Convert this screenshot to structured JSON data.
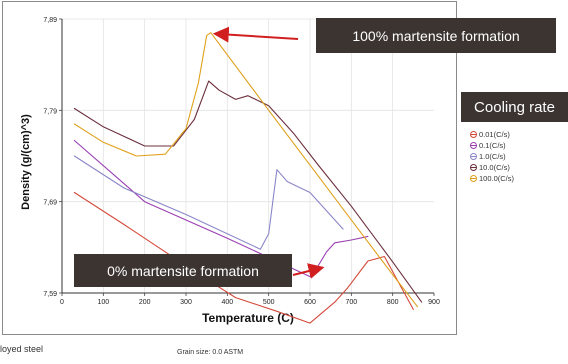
{
  "chart_data": {
    "type": "line",
    "title": "",
    "xlabel": "Temperature (C)",
    "ylabel": "Density (g/(cm)^3)",
    "xlim": [
      0,
      900
    ],
    "ylim": [
      7.59,
      7.89
    ],
    "x_ticks": [
      "0",
      "100",
      "200",
      "300",
      "400",
      "500",
      "600",
      "700",
      "800",
      "900"
    ],
    "y_ticks": [
      "7,59",
      "7,69",
      "7,79",
      "7,89"
    ],
    "y_tick_values": [
      7.59,
      7.69,
      7.79,
      7.89
    ],
    "grid": true,
    "legend_title": "Cooling rate",
    "legend_position": "right",
    "series": [
      {
        "name": "0.01(C/s)",
        "color": "#d44a3a",
        "points": [
          [
            30,
            7.7
          ],
          [
            150,
            7.665
          ],
          [
            250,
            7.635
          ],
          [
            350,
            7.605
          ],
          [
            420,
            7.585
          ],
          [
            520,
            7.57
          ],
          [
            600,
            7.557
          ],
          [
            660,
            7.58
          ],
          [
            690,
            7.595
          ],
          [
            740,
            7.625
          ],
          [
            780,
            7.63
          ],
          [
            850,
            7.572
          ]
        ]
      },
      {
        "name": "0.1(C/s)",
        "color": "#9a3fb2",
        "points": [
          [
            30,
            7.757
          ],
          [
            200,
            7.69
          ],
          [
            400,
            7.65
          ],
          [
            600,
            7.608
          ],
          [
            620,
            7.62
          ],
          [
            640,
            7.635
          ],
          [
            660,
            7.645
          ],
          [
            700,
            7.648
          ],
          [
            740,
            7.652
          ]
        ]
      },
      {
        "name": "1.0(C/s)",
        "color": "#8a86c8",
        "points": [
          [
            30,
            7.74
          ],
          [
            150,
            7.705
          ],
          [
            300,
            7.676
          ],
          [
            480,
            7.638
          ],
          [
            500,
            7.655
          ],
          [
            520,
            7.725
          ],
          [
            545,
            7.712
          ],
          [
            600,
            7.7
          ],
          [
            680,
            7.66
          ]
        ]
      },
      {
        "name": "10.0(C/s)",
        "color": "#6b2f3d",
        "points": [
          [
            30,
            7.792
          ],
          [
            100,
            7.772
          ],
          [
            200,
            7.751
          ],
          [
            270,
            7.751
          ],
          [
            320,
            7.78
          ],
          [
            355,
            7.822
          ],
          [
            380,
            7.812
          ],
          [
            420,
            7.802
          ],
          [
            450,
            7.806
          ],
          [
            500,
            7.795
          ],
          [
            560,
            7.765
          ],
          [
            620,
            7.73
          ],
          [
            700,
            7.685
          ],
          [
            800,
            7.624
          ],
          [
            870,
            7.58
          ]
        ]
      },
      {
        "name": "100.0(C/s)",
        "color": "#e0a11c",
        "points": [
          [
            30,
            7.775
          ],
          [
            100,
            7.755
          ],
          [
            180,
            7.74
          ],
          [
            250,
            7.742
          ],
          [
            300,
            7.77
          ],
          [
            330,
            7.82
          ],
          [
            350,
            7.872
          ],
          [
            360,
            7.875
          ],
          [
            500,
            7.79
          ],
          [
            600,
            7.73
          ],
          [
            700,
            7.67
          ],
          [
            800,
            7.61
          ],
          [
            860,
            7.575
          ]
        ]
      }
    ],
    "annotations": [
      {
        "text": "100% martensite formation",
        "arrow_to": [
          360,
          7.875
        ]
      },
      {
        "text": "0% martensite formation",
        "arrow_to": [
          640,
          7.62
        ]
      }
    ]
  },
  "footer": {
    "left_text": "loyed steel",
    "grain_text": "Grain size: 0.0 ASTM"
  }
}
